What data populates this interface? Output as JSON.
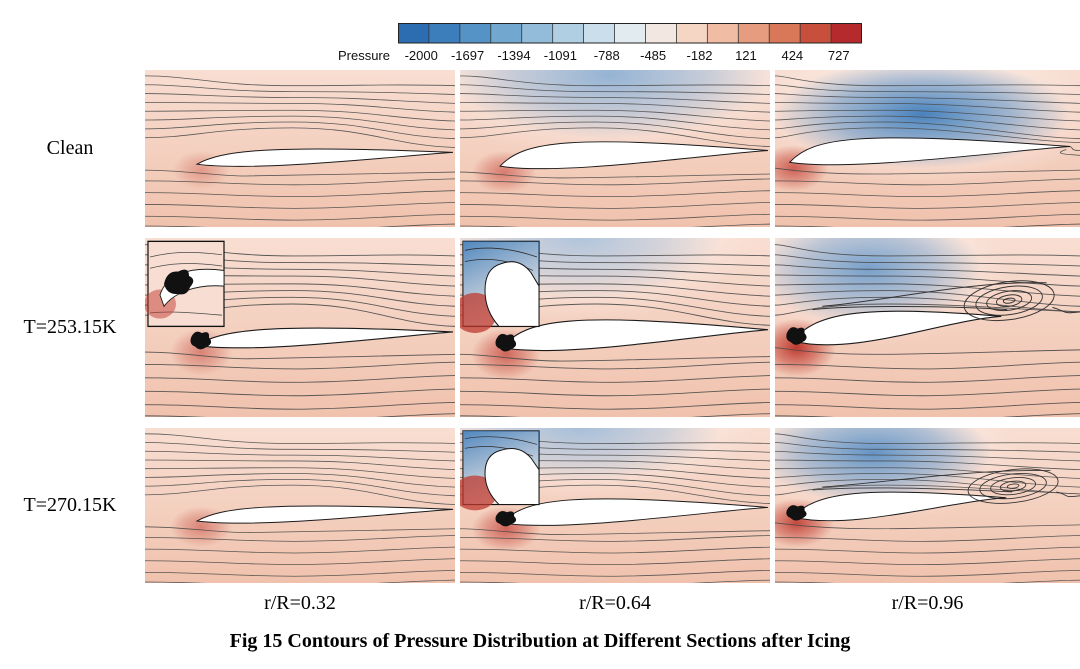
{
  "figure": {
    "caption": "Fig 15 Contours of Pressure Distribution at Different Sections after Icing"
  },
  "colorbar": {
    "label": "Pressure",
    "ticks": [
      "-2000",
      "-1697",
      "-1394",
      "-1091",
      "-788",
      "-485",
      "-182",
      "121",
      "424",
      "727"
    ],
    "segment_colors": [
      "#2c6cb0",
      "#3c7ebc",
      "#5593c6",
      "#72a8d0",
      "#92bcda",
      "#b0cfe3",
      "#cadfeb",
      "#e2ecf0",
      "#f2e8e1",
      "#f5d6c4",
      "#f0bda4",
      "#e69c7e",
      "#d97759",
      "#c94f3d",
      "#b52a2c"
    ]
  },
  "rows": [
    {
      "label": "Clean"
    },
    {
      "label": "T=253.15K"
    },
    {
      "label": "T=270.15K"
    }
  ],
  "columns": [
    {
      "label": "r/R=0.32"
    },
    {
      "label": "r/R=0.64"
    },
    {
      "label": "r/R=0.96"
    }
  ],
  "colors": {
    "field_warm": "#f0c2ad",
    "field_warm_light": "#f8ded2",
    "suction_blue": "#3f7cba",
    "stagnation_red": "#bf392f",
    "streamline": "#4a4a4a",
    "ice": "#111111"
  },
  "chart_data": {
    "type": "heatmap",
    "title": "Fig 15 Contours of Pressure Distribution at Different Sections after Icing",
    "variable": "Pressure",
    "colorbar_label": "Pressure",
    "colorbar_ticks": [
      -2000,
      -1697,
      -1394,
      -1091,
      -788,
      -485,
      -182,
      121,
      424,
      727
    ],
    "colorbar_range": [
      -2000,
      727
    ],
    "legend_position": "top",
    "rows": [
      "Clean",
      "T=253.15K",
      "T=270.15K"
    ],
    "columns": [
      "r/R=0.32",
      "r/R=0.64",
      "r/R=0.96"
    ],
    "panels": [
      {
        "row": "Clean",
        "column": "r/R=0.32",
        "inset": false,
        "separation": false
      },
      {
        "row": "Clean",
        "column": "r/R=0.64",
        "inset": false,
        "separation": false
      },
      {
        "row": "Clean",
        "column": "r/R=0.96",
        "inset": false,
        "separation": false
      },
      {
        "row": "T=253.15K",
        "column": "r/R=0.32",
        "inset": true,
        "separation": false
      },
      {
        "row": "T=253.15K",
        "column": "r/R=0.64",
        "inset": true,
        "separation": false
      },
      {
        "row": "T=253.15K",
        "column": "r/R=0.96",
        "inset": false,
        "separation": true
      },
      {
        "row": "T=270.15K",
        "column": "r/R=0.32",
        "inset": false,
        "separation": false
      },
      {
        "row": "T=270.15K",
        "column": "r/R=0.64",
        "inset": true,
        "separation": false
      },
      {
        "row": "T=270.15K",
        "column": "r/R=0.96",
        "inset": false,
        "separation": true
      }
    ],
    "notes": "Streamline-overlaid pressure contours around airfoil sections; insets show leading-edge ice close-ups; recirculating separation visible at r/R=0.96 for iced cases"
  }
}
